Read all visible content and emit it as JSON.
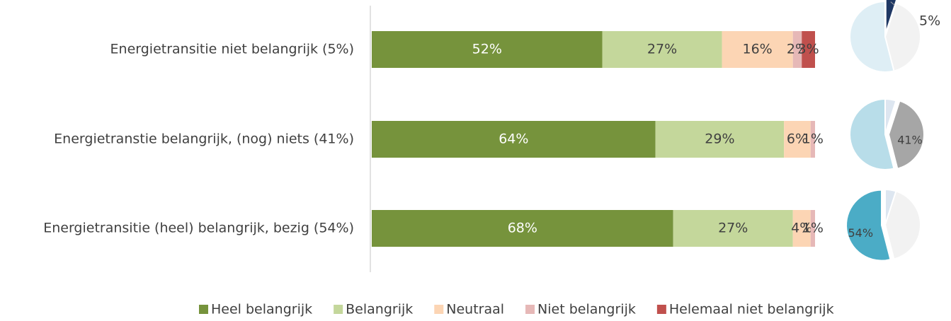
{
  "chart_data": [
    {
      "type": "stacked-bar-horizontal",
      "categories": [
        "Energietransitie niet belangrijk (5%)",
        "Energietranstie belangrijk, (nog) niets (41%)",
        "Energietransitie (heel) belangrijk, bezig (54%)"
      ],
      "xlim": [
        0,
        100
      ],
      "legend": "bottom",
      "series": [
        {
          "name": "Heel belangrijk",
          "color": "#76933c",
          "values": [
            52,
            64,
            68
          ],
          "value_labels": [
            "52%",
            "64%",
            "68%"
          ]
        },
        {
          "name": "Belangrijk",
          "color": "#c4d79b",
          "values": [
            27,
            29,
            27
          ],
          "value_labels": [
            "27%",
            "29%",
            "27%"
          ]
        },
        {
          "name": "Neutraal",
          "color": "#fcd5b4",
          "values": [
            16,
            6,
            4
          ],
          "value_labels": [
            "16%",
            "6%",
            "4%"
          ]
        },
        {
          "name": "Niet belangrijk",
          "color": "#e6b8b7",
          "values": [
            2,
            1,
            1
          ],
          "value_labels": [
            "2%",
            "1%",
            "1%"
          ]
        },
        {
          "name": "Helemaal niet belangrijk",
          "color": "#c0504d",
          "values": [
            3,
            null,
            null
          ],
          "value_labels": [
            "3%",
            null,
            null
          ]
        }
      ]
    },
    {
      "type": "pie",
      "values": [
        5,
        41,
        54
      ],
      "colors": [
        "#1f3864",
        "#f2f2f2",
        "#deeef5"
      ],
      "value_labels": [
        "5%",
        null,
        null
      ]
    },
    {
      "type": "pie",
      "values": [
        5,
        41,
        54
      ],
      "colors": [
        "#dde6f0",
        "#a6a6a6",
        "#b8dde9"
      ],
      "value_labels": [
        null,
        "41%",
        null
      ]
    },
    {
      "type": "pie",
      "values": [
        5,
        41,
        54
      ],
      "colors": [
        "#dde6f0",
        "#f2f2f2",
        "#4bacc6"
      ],
      "value_labels": [
        null,
        null,
        "54%"
      ]
    }
  ]
}
